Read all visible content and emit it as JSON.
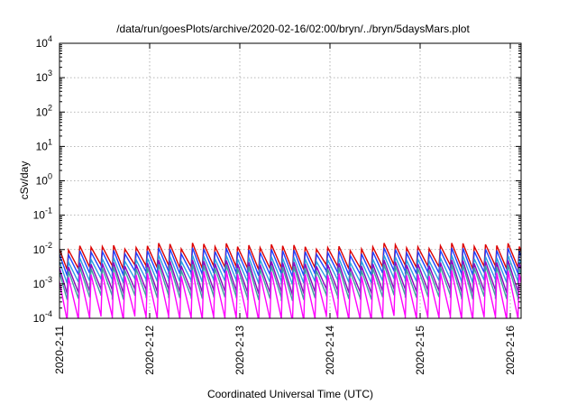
{
  "chart_data": {
    "type": "line",
    "title": "/data/run/goesPlots/archive/2020-02-16/02:00/bryn/../bryn/5daysMars.plot",
    "xlabel": "Coordinated Universal Time (UTC)",
    "ylabel": "cSv/day",
    "y_scale": "log",
    "ylim": [
      0.0001,
      10000
    ],
    "xlim_days": [
      0,
      5.12
    ],
    "grid": true,
    "legend": "none",
    "x_ticks": [
      {
        "label": "2020-2-11",
        "day": 0
      },
      {
        "label": "2020-2-12",
        "day": 1
      },
      {
        "label": "2020-2-13",
        "day": 2
      },
      {
        "label": "2020-2-14",
        "day": 3
      },
      {
        "label": "2020-2-15",
        "day": 4
      },
      {
        "label": "2020-2-16",
        "day": 5
      }
    ],
    "y_ticks": [
      {
        "mantissa": "10",
        "exp": "-4",
        "value": 0.0001
      },
      {
        "mantissa": "10",
        "exp": "-3",
        "value": 0.001
      },
      {
        "mantissa": "10",
        "exp": "-2",
        "value": 0.01
      },
      {
        "mantissa": "10",
        "exp": "-1",
        "value": 0.1
      },
      {
        "mantissa": "10",
        "exp": "0",
        "value": 1
      },
      {
        "mantissa": "10",
        "exp": "1",
        "value": 10
      },
      {
        "mantissa": "10",
        "exp": "2",
        "value": 100
      },
      {
        "mantissa": "10",
        "exp": "3",
        "value": 1000
      },
      {
        "mantissa": "10",
        "exp": "4",
        "value": 10000
      }
    ],
    "sawtooth_period_days": 0.125,
    "series": [
      {
        "color": "#dd0000",
        "peak": 0.0125,
        "trough": 0.003
      },
      {
        "color": "#1f3fff",
        "peak": 0.009,
        "trough": 0.002
      },
      {
        "color": "#2aa0e0",
        "peak": 0.0055,
        "trough": 0.0012
      },
      {
        "color": "#9000c0",
        "peak": 0.004,
        "trough": 0.0006
      },
      {
        "color": "#40a0a0",
        "peak": 0.003,
        "trough": 0.0004
      },
      {
        "color": "#ff00ff",
        "peak": 0.002,
        "trough": 0.0001
      }
    ]
  }
}
